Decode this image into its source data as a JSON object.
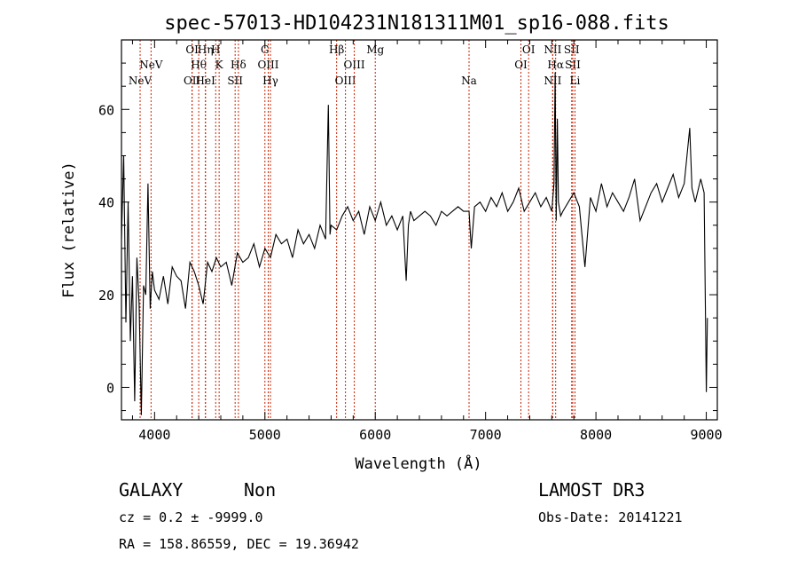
{
  "chart_data": {
    "type": "line",
    "title": "spec-57013-HD104231N181311M01_sp16-088.fits",
    "xlabel": "Wavelength (Å)",
    "ylabel": "Flux (relative)",
    "xlim": [
      3700,
      9100
    ],
    "ylim": [
      -7,
      75
    ],
    "xticks": [
      "4000",
      "5000",
      "6000",
      "7000",
      "8000",
      "9000"
    ],
    "yticks": [
      "0",
      "20",
      "40",
      "60"
    ],
    "series": [
      {
        "name": "flux",
        "x": [
          3700,
          3720,
          3740,
          3760,
          3780,
          3800,
          3820,
          3840,
          3860,
          3880,
          3900,
          3920,
          3940,
          3960,
          3980,
          4000,
          4040,
          4080,
          4120,
          4160,
          4200,
          4240,
          4280,
          4320,
          4360,
          4400,
          4440,
          4480,
          4520,
          4560,
          4600,
          4650,
          4700,
          4750,
          4800,
          4850,
          4900,
          4950,
          5000,
          5050,
          5100,
          5150,
          5200,
          5250,
          5300,
          5350,
          5400,
          5450,
          5500,
          5550,
          5575,
          5590,
          5600,
          5650,
          5700,
          5750,
          5800,
          5850,
          5900,
          5950,
          6000,
          6050,
          6100,
          6150,
          6200,
          6250,
          6280,
          6300,
          6320,
          6350,
          6400,
          6450,
          6500,
          6550,
          6600,
          6650,
          6700,
          6750,
          6800,
          6850,
          6870,
          6900,
          6950,
          7000,
          7050,
          7100,
          7150,
          7200,
          7250,
          7300,
          7350,
          7400,
          7450,
          7500,
          7550,
          7600,
          7620,
          7630,
          7640,
          7650,
          7660,
          7680,
          7700,
          7750,
          7800,
          7850,
          7900,
          7950,
          8000,
          8050,
          8100,
          8150,
          8200,
          8250,
          8300,
          8350,
          8400,
          8450,
          8500,
          8550,
          8600,
          8650,
          8700,
          8750,
          8800,
          8850,
          8870,
          8900,
          8950,
          8980,
          9000,
          9010
        ],
        "values": [
          32,
          50,
          14,
          40,
          10,
          24,
          -3,
          28,
          18,
          -6,
          22,
          20,
          44,
          17,
          25,
          21,
          19,
          24,
          18,
          26,
          24,
          23,
          17,
          27,
          25,
          22,
          18,
          27,
          25,
          28,
          26,
          27,
          22,
          29,
          27,
          28,
          31,
          26,
          30,
          28,
          33,
          31,
          32,
          28,
          34,
          31,
          33,
          30,
          35,
          32,
          61,
          33,
          35,
          34,
          37,
          39,
          36,
          38,
          33,
          39,
          36,
          40,
          35,
          37,
          34,
          37,
          23,
          35,
          38,
          36,
          37,
          38,
          37,
          35,
          38,
          37,
          38,
          39,
          38,
          38,
          30,
          39,
          40,
          38,
          41,
          39,
          42,
          38,
          40,
          43,
          38,
          40,
          42,
          39,
          41,
          38,
          44,
          68,
          36,
          58,
          40,
          37,
          38,
          40,
          42,
          39,
          26,
          41,
          38,
          44,
          39,
          42,
          40,
          38,
          41,
          45,
          36,
          39,
          42,
          44,
          40,
          43,
          46,
          41,
          44,
          56,
          43,
          40,
          45,
          42,
          -1,
          15
        ]
      }
    ],
    "lines": [
      {
        "wl": 3869,
        "label": "NeV",
        "row": 2
      },
      {
        "wl": 3968,
        "label": "NeV",
        "row": 1
      },
      {
        "wl": 4340,
        "label": "OII",
        "row": 3
      },
      {
        "wl": 4340,
        "label": "OI",
        "row": 0
      },
      {
        "wl": 4400,
        "label": "Hθ",
        "row": 1
      },
      {
        "wl": 4461,
        "label": "Hη",
        "row": 0
      },
      {
        "wl": 4461,
        "label": "HeI",
        "row": 3
      },
      {
        "wl": 4554,
        "label": "H",
        "row": 0
      },
      {
        "wl": 4585,
        "label": "K",
        "row": 1
      },
      {
        "wl": 4730,
        "label": "SII",
        "row": 3
      },
      {
        "wl": 4760,
        "label": "Hδ",
        "row": 1
      },
      {
        "wl": 5000,
        "label": "G",
        "row": 0
      },
      {
        "wl": 5030,
        "label": "OIII",
        "row": 1
      },
      {
        "wl": 5050,
        "label": "Hγ",
        "row": 3
      },
      {
        "wl": 5650,
        "label": "Hβ",
        "row": 0
      },
      {
        "wl": 5730,
        "label": "OIII",
        "row": 3
      },
      {
        "wl": 5810,
        "label": "OIII",
        "row": 1
      },
      {
        "wl": 6000,
        "label": "Mg",
        "row": 0
      },
      {
        "wl": 6850,
        "label": "Na",
        "row": 3
      },
      {
        "wl": 7320,
        "label": "OI",
        "row": 1
      },
      {
        "wl": 7390,
        "label": "OI",
        "row": 0
      },
      {
        "wl": 7608,
        "label": "NII",
        "row": 0
      },
      {
        "wl": 7608,
        "label": "NII",
        "row": 3
      },
      {
        "wl": 7635,
        "label": "Hα",
        "row": 1
      },
      {
        "wl": 7780,
        "label": "SII",
        "row": 0
      },
      {
        "wl": 7790,
        "label": "SII",
        "row": 1
      },
      {
        "wl": 7810,
        "label": "Li",
        "row": 3
      }
    ]
  },
  "info": {
    "object_type": "GALAXY",
    "subclass": "Non",
    "survey": "LAMOST DR3",
    "cz": "cz = 0.2 ± -9999.0",
    "obs_date": "Obs-Date: 20141221",
    "coords": "RA = 158.86559, DEC =  19.36942"
  }
}
